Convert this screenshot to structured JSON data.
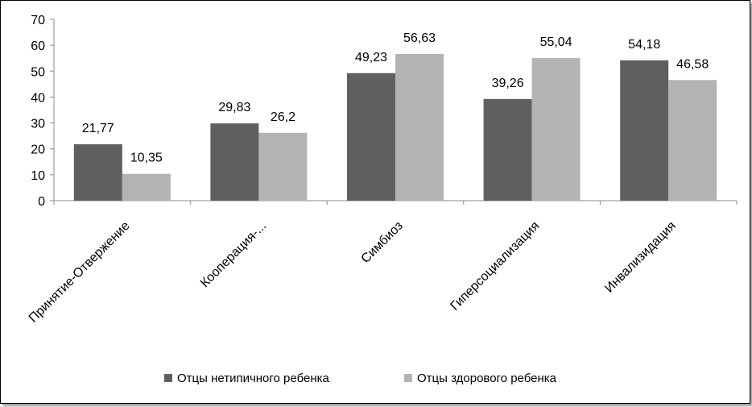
{
  "chart_data": {
    "type": "bar",
    "categories": [
      "Принятие-Отвержение",
      "Кооперация-...",
      "Симбиоз",
      "Гиперсоциализация",
      "Инвализидация"
    ],
    "series": [
      {
        "name": "Отцы нетипичного ребенка",
        "values": [
          21.77,
          29.83,
          49.23,
          39.26,
          54.18
        ],
        "labels": [
          "21,77",
          "29,83",
          "49,23",
          "39,26",
          "54,18"
        ],
        "color": "#5f5f5f"
      },
      {
        "name": "Отцы здорового ребенка",
        "values": [
          10.35,
          26.2,
          56.63,
          55.04,
          46.58
        ],
        "labels": [
          "10,35",
          "26,2",
          "56,63",
          "55,04",
          "46,58"
        ],
        "color": "#b3b3b3"
      }
    ],
    "ylim": [
      0,
      70
    ],
    "yticks": [
      0,
      10,
      20,
      30,
      40,
      50,
      60,
      70
    ],
    "grid": false,
    "legend_position": "bottom"
  }
}
